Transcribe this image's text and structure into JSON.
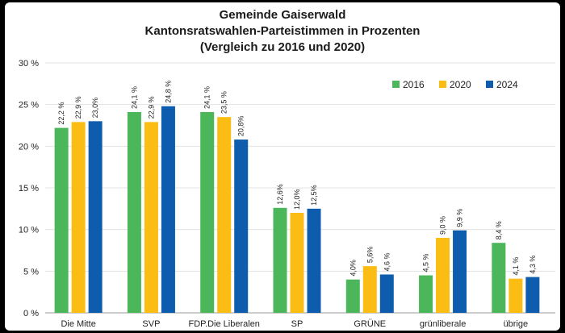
{
  "chart_data": {
    "type": "bar",
    "title": [
      "Gemeinde Gaiserwald",
      "Kantonsratswahlen-Parteistimmen in Prozenten",
      "(Vergleich zu 2016 und 2020)"
    ],
    "categories": [
      "Die Mitte",
      "SVP",
      "FDP.Die Liberalen",
      "SP",
      "GRÜNE",
      "grünliberale",
      "übrige"
    ],
    "series": [
      {
        "name": "2016",
        "color": "#4cb65a",
        "values": [
          22.2,
          24.1,
          24.1,
          12.6,
          4.0,
          4.5,
          8.4
        ],
        "labels": [
          "22,2 %",
          "24,1 %",
          "24,1 %",
          "12,6%",
          "4,0%",
          "4,5 %",
          "8,4 %"
        ]
      },
      {
        "name": "2020",
        "color": "#fbbc14",
        "values": [
          22.9,
          22.9,
          23.5,
          12.0,
          5.6,
          9.0,
          4.1
        ],
        "labels": [
          "22,9 %",
          "22,9 %",
          "23,5 %",
          "12,0%",
          "5,6%",
          "9,0 %",
          "4,1 %"
        ]
      },
      {
        "name": "2024",
        "color": "#0d5cad",
        "values": [
          23.0,
          24.8,
          20.8,
          12.5,
          4.6,
          9.9,
          4.3
        ],
        "labels": [
          "23,0%",
          "24,8 %",
          "20,8%",
          "12,5%",
          "4,6 %",
          "9,9 %",
          "4,3 %"
        ]
      }
    ],
    "ylim": [
      0,
      30
    ],
    "yticks": [
      "0 %",
      "5 %",
      "10 %",
      "15 %",
      "20 %",
      "25 %",
      "30 %"
    ],
    "grid": true,
    "legend": "top-right"
  }
}
